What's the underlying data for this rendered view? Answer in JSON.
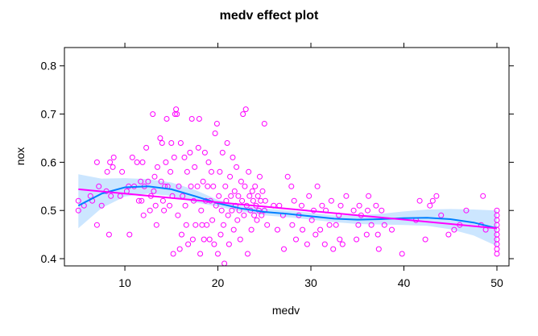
{
  "chart_data": {
    "type": "scatter",
    "title": "medv effect plot",
    "xlabel": "medv",
    "ylabel": "nox",
    "xlim": [
      3.5,
      51.3
    ],
    "ylim": [
      0.385,
      0.838
    ],
    "x_ticks": [
      10,
      20,
      30,
      40,
      50
    ],
    "y_ticks": [
      0.4,
      0.5,
      0.6,
      0.7,
      0.8
    ],
    "x_tick_labels": [
      "10",
      "20",
      "30",
      "40",
      "50"
    ],
    "y_tick_labels": [
      "0.4",
      "0.5",
      "0.6",
      "0.7",
      "0.8"
    ],
    "grid": false,
    "legend": "none",
    "colors": {
      "points": "#ff00ff",
      "linear_fit": "#ff00ff",
      "smooth_fit": "#0080ff",
      "confidence_band": "#cce6ff",
      "frame": "#000000"
    },
    "points": [
      [
        5.0,
        0.52
      ],
      [
        5.0,
        0.5
      ],
      [
        5.6,
        0.51
      ],
      [
        6.3,
        0.53
      ],
      [
        6.5,
        0.52
      ],
      [
        7.0,
        0.47
      ],
      [
        7.0,
        0.6
      ],
      [
        7.2,
        0.55
      ],
      [
        7.5,
        0.51
      ],
      [
        8.0,
        0.54
      ],
      [
        8.1,
        0.58
      ],
      [
        8.3,
        0.45
      ],
      [
        8.4,
        0.6
      ],
      [
        8.5,
        0.53
      ],
      [
        8.7,
        0.59
      ],
      [
        8.8,
        0.61
      ],
      [
        9.5,
        0.53
      ],
      [
        9.7,
        0.58
      ],
      [
        10.2,
        0.54
      ],
      [
        10.4,
        0.55
      ],
      [
        10.5,
        0.45
      ],
      [
        10.8,
        0.61
      ],
      [
        11.0,
        0.55
      ],
      [
        11.3,
        0.6
      ],
      [
        11.5,
        0.52
      ],
      [
        11.7,
        0.56
      ],
      [
        11.8,
        0.52
      ],
      [
        11.9,
        0.6
      ],
      [
        12.0,
        0.49
      ],
      [
        12.1,
        0.55
      ],
      [
        12.3,
        0.63
      ],
      [
        12.5,
        0.56
      ],
      [
        12.7,
        0.5
      ],
      [
        12.8,
        0.53
      ],
      [
        13.0,
        0.7
      ],
      [
        13.1,
        0.54
      ],
      [
        13.2,
        0.57
      ],
      [
        13.3,
        0.51
      ],
      [
        13.4,
        0.47
      ],
      [
        13.5,
        0.59
      ],
      [
        13.8,
        0.65
      ],
      [
        13.9,
        0.56
      ],
      [
        14.0,
        0.64
      ],
      [
        14.1,
        0.52
      ],
      [
        14.2,
        0.5
      ],
      [
        14.3,
        0.55
      ],
      [
        14.4,
        0.6
      ],
      [
        14.5,
        0.69
      ],
      [
        14.6,
        0.55
      ],
      [
        14.8,
        0.51
      ],
      [
        14.9,
        0.58
      ],
      [
        15.0,
        0.64
      ],
      [
        15.1,
        0.53
      ],
      [
        15.2,
        0.41
      ],
      [
        15.3,
        0.61
      ],
      [
        15.4,
        0.7
      ],
      [
        15.5,
        0.71
      ],
      [
        15.6,
        0.7
      ],
      [
        15.7,
        0.49
      ],
      [
        15.8,
        0.55
      ],
      [
        15.9,
        0.42
      ],
      [
        16.0,
        0.64
      ],
      [
        16.1,
        0.45
      ],
      [
        16.2,
        0.53
      ],
      [
        16.4,
        0.61
      ],
      [
        16.5,
        0.51
      ],
      [
        16.6,
        0.47
      ],
      [
        16.7,
        0.58
      ],
      [
        16.8,
        0.43
      ],
      [
        17.0,
        0.62
      ],
      [
        17.1,
        0.55
      ],
      [
        17.2,
        0.69
      ],
      [
        17.3,
        0.44
      ],
      [
        17.4,
        0.52
      ],
      [
        17.5,
        0.59
      ],
      [
        17.6,
        0.47
      ],
      [
        17.8,
        0.55
      ],
      [
        17.9,
        0.63
      ],
      [
        18.0,
        0.69
      ],
      [
        18.1,
        0.41
      ],
      [
        18.2,
        0.5
      ],
      [
        18.3,
        0.47
      ],
      [
        18.4,
        0.56
      ],
      [
        18.5,
        0.44
      ],
      [
        18.6,
        0.62
      ],
      [
        18.7,
        0.52
      ],
      [
        18.8,
        0.47
      ],
      [
        18.9,
        0.55
      ],
      [
        19.0,
        0.6
      ],
      [
        19.1,
        0.44
      ],
      [
        19.2,
        0.52
      ],
      [
        19.3,
        0.58
      ],
      [
        19.4,
        0.48
      ],
      [
        19.5,
        0.55
      ],
      [
        19.6,
        0.43
      ],
      [
        19.7,
        0.66
      ],
      [
        19.8,
        0.51
      ],
      [
        19.9,
        0.68
      ],
      [
        20.0,
        0.41
      ],
      [
        20.1,
        0.53
      ],
      [
        20.2,
        0.58
      ],
      [
        20.3,
        0.45
      ],
      [
        20.4,
        0.5
      ],
      [
        20.5,
        0.62
      ],
      [
        20.6,
        0.47
      ],
      [
        20.7,
        0.39
      ],
      [
        20.8,
        0.55
      ],
      [
        20.9,
        0.52
      ],
      [
        21.0,
        0.64
      ],
      [
        21.1,
        0.49
      ],
      [
        21.2,
        0.43
      ],
      [
        21.3,
        0.57
      ],
      [
        21.4,
        0.53
      ],
      [
        21.5,
        0.5
      ],
      [
        21.6,
        0.61
      ],
      [
        21.7,
        0.46
      ],
      [
        21.8,
        0.54
      ],
      [
        21.9,
        0.51
      ],
      [
        22.0,
        0.59
      ],
      [
        22.1,
        0.48
      ],
      [
        22.2,
        0.53
      ],
      [
        22.3,
        0.5
      ],
      [
        22.4,
        0.44
      ],
      [
        22.5,
        0.56
      ],
      [
        22.6,
        0.52
      ],
      [
        22.7,
        0.7
      ],
      [
        22.8,
        0.49
      ],
      [
        22.9,
        0.55
      ],
      [
        23.0,
        0.71
      ],
      [
        23.1,
        0.51
      ],
      [
        23.2,
        0.41
      ],
      [
        23.3,
        0.58
      ],
      [
        23.4,
        0.53
      ],
      [
        23.5,
        0.5
      ],
      [
        23.6,
        0.46
      ],
      [
        23.7,
        0.54
      ],
      [
        23.8,
        0.52
      ],
      [
        23.9,
        0.49
      ],
      [
        24.0,
        0.55
      ],
      [
        24.1,
        0.51
      ],
      [
        24.2,
        0.48
      ],
      [
        24.3,
        0.53
      ],
      [
        24.4,
        0.5
      ],
      [
        24.5,
        0.57
      ],
      [
        24.6,
        0.52
      ],
      [
        24.7,
        0.49
      ],
      [
        24.8,
        0.54
      ],
      [
        25.0,
        0.5
      ],
      [
        25.0,
        0.68
      ],
      [
        25.1,
        0.52
      ],
      [
        25.3,
        0.47
      ],
      [
        26.0,
        0.51
      ],
      [
        26.4,
        0.46
      ],
      [
        26.6,
        0.51
      ],
      [
        27.0,
        0.49
      ],
      [
        27.1,
        0.42
      ],
      [
        27.5,
        0.57
      ],
      [
        27.9,
        0.55
      ],
      [
        28.0,
        0.47
      ],
      [
        28.2,
        0.52
      ],
      [
        28.4,
        0.44
      ],
      [
        28.7,
        0.49
      ],
      [
        29.0,
        0.51
      ],
      [
        29.1,
        0.46
      ],
      [
        29.6,
        0.43
      ],
      [
        29.8,
        0.53
      ],
      [
        30.1,
        0.48
      ],
      [
        30.3,
        0.5
      ],
      [
        30.5,
        0.45
      ],
      [
        30.7,
        0.55
      ],
      [
        31.0,
        0.46
      ],
      [
        31.2,
        0.51
      ],
      [
        31.5,
        0.43
      ],
      [
        31.6,
        0.5
      ],
      [
        32.0,
        0.47
      ],
      [
        32.2,
        0.52
      ],
      [
        32.4,
        0.42
      ],
      [
        32.7,
        0.47
      ],
      [
        33.0,
        0.49
      ],
      [
        33.1,
        0.44
      ],
      [
        33.2,
        0.51
      ],
      [
        33.4,
        0.43
      ],
      [
        33.8,
        0.53
      ],
      [
        34.6,
        0.5
      ],
      [
        34.9,
        0.44
      ],
      [
        35.1,
        0.47
      ],
      [
        35.2,
        0.51
      ],
      [
        35.4,
        0.49
      ],
      [
        36.0,
        0.45
      ],
      [
        36.1,
        0.5
      ],
      [
        36.2,
        0.53
      ],
      [
        36.5,
        0.47
      ],
      [
        37.0,
        0.51
      ],
      [
        37.2,
        0.45
      ],
      [
        37.3,
        0.42
      ],
      [
        37.6,
        0.5
      ],
      [
        37.9,
        0.47
      ],
      [
        38.7,
        0.46
      ],
      [
        39.8,
        0.41
      ],
      [
        41.3,
        0.48
      ],
      [
        41.7,
        0.52
      ],
      [
        42.3,
        0.44
      ],
      [
        42.8,
        0.51
      ],
      [
        43.1,
        0.52
      ],
      [
        43.5,
        0.53
      ],
      [
        44.0,
        0.49
      ],
      [
        44.8,
        0.45
      ],
      [
        45.4,
        0.46
      ],
      [
        46.0,
        0.47
      ],
      [
        46.7,
        0.5
      ],
      [
        48.3,
        0.47
      ],
      [
        48.5,
        0.53
      ],
      [
        48.8,
        0.46
      ],
      [
        50.0,
        0.5
      ],
      [
        50.0,
        0.49
      ],
      [
        50.0,
        0.48
      ],
      [
        50.0,
        0.47
      ],
      [
        50.0,
        0.46
      ],
      [
        50.0,
        0.45
      ],
      [
        50.0,
        0.44
      ],
      [
        50.0,
        0.43
      ],
      [
        50.0,
        0.42
      ],
      [
        50.0,
        0.41
      ]
    ],
    "linear_fit": {
      "x": [
        5,
        50
      ],
      "y": [
        0.544,
        0.463
      ]
    },
    "smooth_fit": {
      "x": [
        5,
        7.5,
        10,
        12.5,
        15,
        17.5,
        20,
        22.5,
        25,
        27.5,
        30,
        32.5,
        35,
        37.5,
        40,
        42.5,
        45,
        47.5,
        50
      ],
      "y": [
        0.51,
        0.535,
        0.548,
        0.55,
        0.544,
        0.53,
        0.515,
        0.504,
        0.497,
        0.493,
        0.488,
        0.483,
        0.481,
        0.482,
        0.484,
        0.485,
        0.482,
        0.475,
        0.463
      ],
      "upper": [
        0.575,
        0.566,
        0.567,
        0.565,
        0.558,
        0.543,
        0.522,
        0.51,
        0.504,
        0.5,
        0.495,
        0.49,
        0.49,
        0.493,
        0.498,
        0.502,
        0.503,
        0.502,
        0.5
      ],
      "lower": [
        0.463,
        0.505,
        0.529,
        0.535,
        0.53,
        0.517,
        0.508,
        0.498,
        0.49,
        0.486,
        0.481,
        0.476,
        0.472,
        0.471,
        0.47,
        0.468,
        0.461,
        0.448,
        0.426
      ]
    }
  }
}
